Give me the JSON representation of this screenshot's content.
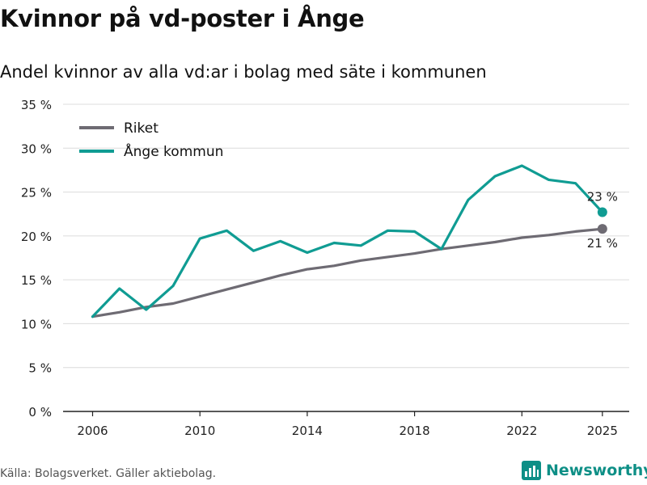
{
  "header": {
    "title": "Kvinnor på vd-poster i Ånge",
    "subtitle": "Andel kvinnor av alla vd:ar i bolag med säte i kommunen"
  },
  "footer": {
    "source": "Källa: Bolagsverket. Gäller aktiebolag.",
    "brand": "Newsworthy"
  },
  "colors": {
    "riket": "#6e6b73",
    "ange": "#109c93",
    "grid": "#dcdcdc",
    "brand": "#0e8f86"
  },
  "chart_data": {
    "type": "line",
    "title": "Kvinnor på vd-poster i Ånge",
    "subtitle": "Andel kvinnor av alla vd:ar i bolag med säte i kommunen",
    "xlabel": "",
    "ylabel": "",
    "x": [
      2006,
      2007,
      2008,
      2009,
      2010,
      2011,
      2012,
      2013,
      2014,
      2015,
      2016,
      2017,
      2018,
      2019,
      2020,
      2021,
      2022,
      2023,
      2024,
      2025
    ],
    "xlim": [
      2004.9,
      2026.0
    ],
    "ylim": [
      0,
      35
    ],
    "x_ticks": [
      2006,
      2010,
      2014,
      2018,
      2022,
      2025
    ],
    "x_tick_labels": [
      "2006",
      "2010",
      "2014",
      "2018",
      "2022",
      "2025"
    ],
    "y_ticks": [
      0,
      5,
      10,
      15,
      20,
      25,
      30,
      35
    ],
    "y_tick_labels": [
      "0 %",
      "5 %",
      "10 %",
      "15 %",
      "20 %",
      "25 %",
      "30 %",
      "35 %"
    ],
    "grid": true,
    "legend_position": "top-left",
    "series": [
      {
        "name": "Riket",
        "color_key": "riket",
        "values": [
          10.8,
          11.3,
          11.9,
          12.3,
          13.1,
          13.9,
          14.7,
          15.5,
          16.2,
          16.6,
          17.2,
          17.6,
          18.0,
          18.5,
          18.9,
          19.3,
          19.8,
          20.1,
          20.5,
          20.8
        ],
        "end_label": "21 %"
      },
      {
        "name": "Ånge kommun",
        "color_key": "ange",
        "values": [
          10.8,
          14.0,
          11.6,
          14.3,
          19.7,
          20.6,
          18.3,
          19.4,
          18.1,
          19.2,
          18.9,
          20.6,
          20.5,
          18.5,
          24.1,
          26.8,
          28.0,
          26.4,
          26.0,
          22.7
        ],
        "end_label": "23 %"
      }
    ]
  }
}
